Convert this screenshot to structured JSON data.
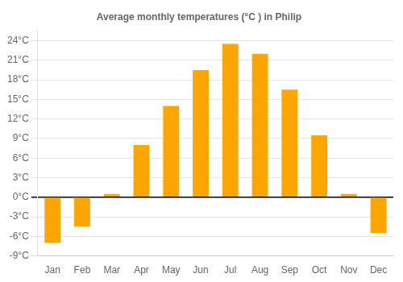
{
  "chart_data": {
    "type": "bar",
    "title": "Average monthly temperatures (°C ) in Philip",
    "categories": [
      "Jan",
      "Feb",
      "Mar",
      "Apr",
      "May",
      "Jun",
      "Jul",
      "Aug",
      "Sep",
      "Oct",
      "Nov",
      "Dec"
    ],
    "values": [
      -7.0,
      -4.5,
      0.5,
      8.0,
      14.0,
      19.5,
      23.5,
      22.0,
      16.5,
      9.5,
      0.5,
      -5.5
    ],
    "color": "#FFA500",
    "ylim": [
      -9,
      25.5
    ],
    "yticks": [
      {
        "value": -9,
        "label": "-9°C"
      },
      {
        "value": -6,
        "label": "-6°C"
      },
      {
        "value": -3,
        "label": "-3°C"
      },
      {
        "value": 0,
        "label": "0°C"
      },
      {
        "value": 3,
        "label": "3°C"
      },
      {
        "value": 6,
        "label": "6°C"
      },
      {
        "value": 9,
        "label": "9°C"
      },
      {
        "value": 12,
        "label": "12°C"
      },
      {
        "value": 15,
        "label": "15°C"
      },
      {
        "value": 18,
        "label": "18°C"
      },
      {
        "value": 21,
        "label": "21°C"
      },
      {
        "value": 24,
        "label": "24°C"
      }
    ],
    "grid": true
  }
}
